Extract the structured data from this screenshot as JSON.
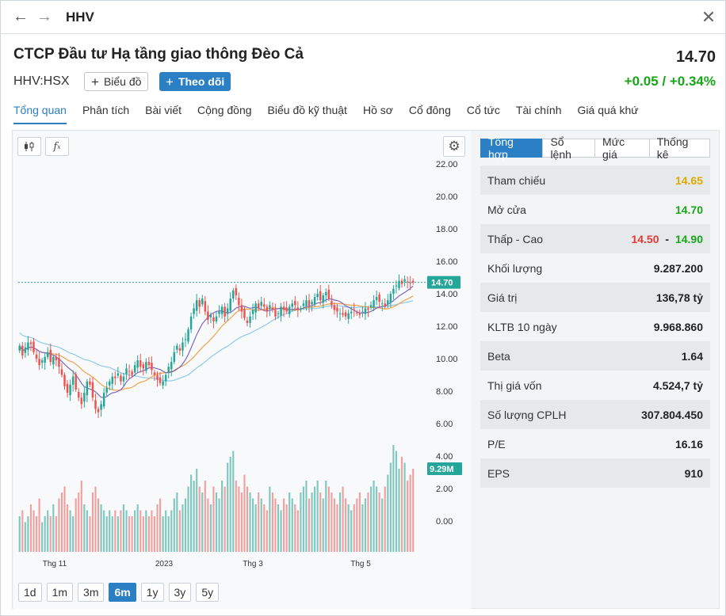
{
  "window": {
    "title": "HHV"
  },
  "header": {
    "company_name": "CTCP Đầu tư Hạ tầng giao thông Đèo Cả",
    "ticker": "HHV:HSX",
    "price": "14.70",
    "change": "+0.05 / +0.34%",
    "chart_button": "Biểu đồ",
    "follow_button": "Theo dõi"
  },
  "tabs": [
    "Tổng quan",
    "Phân tích",
    "Bài viết",
    "Cộng đồng",
    "Biểu đồ kỹ thuật",
    "Hồ sơ",
    "Cổ đông",
    "Cổ tức",
    "Tài chính",
    "Giá quá khứ"
  ],
  "side_tabs": [
    "Tổng hợp",
    "Sổ lệnh",
    "Mức giá",
    "Thống kê"
  ],
  "stats": {
    "reference_label": "Tham chiếu",
    "reference_value": "14.65",
    "open_label": "Mở cửa",
    "open_value": "14.70",
    "range_label": "Thấp - Cao",
    "low_value": "14.50",
    "range_sep": "-",
    "high_value": "14.90",
    "volume_label": "Khối lượng",
    "volume_value": "9.287.200",
    "value_label": "Giá trị",
    "value_value": "136,78 tỷ",
    "avgvol_label": "KLTB 10 ngày",
    "avgvol_value": "9.968.860",
    "beta_label": "Beta",
    "beta_value": "1.64",
    "mcap_label": "Thị giá vốn",
    "mcap_value": "4.524,7 tỷ",
    "shares_label": "Số lượng CPLH",
    "shares_value": "307.804.450",
    "pe_label": "P/E",
    "pe_value": "16.16",
    "eps_label": "EPS",
    "eps_value": "910"
  },
  "ranges": [
    "1d",
    "1m",
    "3m",
    "6m",
    "1y",
    "3y",
    "5y"
  ],
  "active_range": "6m",
  "colors": {
    "accent": "#2b7fc4",
    "up": "#26a69a",
    "down": "#ef5350",
    "ref": "#e0a800",
    "positive": "#19a519",
    "negative": "#e53935"
  },
  "chart_data": {
    "type": "candlestick",
    "y_ticks": [
      "22.00",
      "20.00",
      "18.00",
      "16.00",
      "14.00",
      "12.00",
      "10.00",
      "8.00",
      "6.00",
      "4.00",
      "2.00",
      "0.00"
    ],
    "ylim": [
      0,
      22
    ],
    "x_ticks": [
      "Thg 11",
      "2023",
      "Thg 3",
      "Thg 5"
    ],
    "last_price_label": "14.70",
    "last_volume_label": "9.29M",
    "close": [
      10.8,
      10.2,
      10.7,
      11.0,
      10.9,
      10.4,
      10.0,
      9.6,
      9.9,
      10.1,
      10.4,
      9.8,
      10.1,
      9.9,
      9.5,
      9.0,
      8.3,
      7.9,
      8.4,
      8.9,
      8.1,
      7.6,
      7.2,
      7.9,
      8.6,
      8.4,
      7.6,
      6.9,
      6.7,
      7.2,
      7.9,
      8.2,
      8.6,
      8.9,
      8.8,
      9.1,
      8.6,
      8.9,
      9.4,
      9.2,
      9.0,
      9.6,
      9.9,
      9.5,
      9.4,
      9.8,
      9.6,
      9.3,
      9.0,
      8.7,
      8.5,
      8.6,
      9.0,
      9.5,
      9.8,
      10.4,
      10.8,
      10.5,
      11.0,
      11.2,
      11.8,
      12.6,
      13.1,
      13.6,
      13.2,
      13.7,
      12.9,
      12.4,
      12.7,
      12.3,
      12.6,
      12.9,
      13.2,
      12.6,
      13.1,
      13.7,
      14.2,
      13.9,
      13.3,
      12.9,
      12.5,
      12.2,
      12.6,
      13.0,
      13.4,
      13.1,
      13.5,
      13.2,
      12.9,
      13.3,
      13.0,
      12.6,
      12.8,
      13.2,
      13.0,
      12.9,
      13.2,
      13.4,
      13.3,
      13.0,
      13.1,
      13.4,
      13.6,
      13.2,
      13.5,
      13.8,
      14.0,
      13.6,
      13.9,
      14.1,
      13.7,
      13.3,
      13.0,
      12.9,
      12.8,
      12.7,
      12.6,
      12.8,
      12.9,
      13.0,
      12.8,
      12.7,
      12.9,
      13.1,
      13.0,
      13.3,
      13.6,
      13.8,
      13.5,
      13.4,
      13.2,
      13.6,
      14.0,
      14.3,
      14.5,
      14.8,
      14.6,
      14.9,
      14.7,
      14.65,
      14.7
    ],
    "volume_scale": [
      0.3,
      0.35,
      0.25,
      0.3,
      0.4,
      0.35,
      0.3,
      0.45,
      0.25,
      0.3,
      0.35,
      0.3,
      0.4,
      0.3,
      0.45,
      0.5,
      0.55,
      0.4,
      0.35,
      0.3,
      0.45,
      0.5,
      0.6,
      0.4,
      0.35,
      0.3,
      0.5,
      0.55,
      0.45,
      0.4,
      0.35,
      0.3,
      0.35,
      0.3,
      0.35,
      0.3,
      0.35,
      0.4,
      0.35,
      0.3,
      0.3,
      0.35,
      0.4,
      0.35,
      0.3,
      0.35,
      0.3,
      0.35,
      0.3,
      0.4,
      0.45,
      0.3,
      0.35,
      0.3,
      0.35,
      0.45,
      0.5,
      0.35,
      0.4,
      0.45,
      0.55,
      0.65,
      0.6,
      0.7,
      0.55,
      0.5,
      0.6,
      0.45,
      0.4,
      0.55,
      0.5,
      0.45,
      0.6,
      0.55,
      0.75,
      0.8,
      0.85,
      0.6,
      0.55,
      0.5,
      0.65,
      0.55,
      0.5,
      0.45,
      0.4,
      0.5,
      0.45,
      0.4,
      0.35,
      0.55,
      0.5,
      0.45,
      0.4,
      0.35,
      0.45,
      0.4,
      0.5,
      0.45,
      0.4,
      0.35,
      0.5,
      0.55,
      0.6,
      0.45,
      0.5,
      0.55,
      0.6,
      0.5,
      0.45,
      0.6,
      0.55,
      0.5,
      0.45,
      0.4,
      0.5,
      0.55,
      0.45,
      0.4,
      0.35,
      0.4,
      0.45,
      0.5,
      0.4,
      0.45,
      0.5,
      0.55,
      0.6,
      0.55,
      0.5,
      0.45,
      0.55,
      0.65,
      0.75,
      0.9,
      0.85,
      0.7,
      0.8,
      0.75,
      0.6,
      0.65,
      0.7
    ]
  }
}
